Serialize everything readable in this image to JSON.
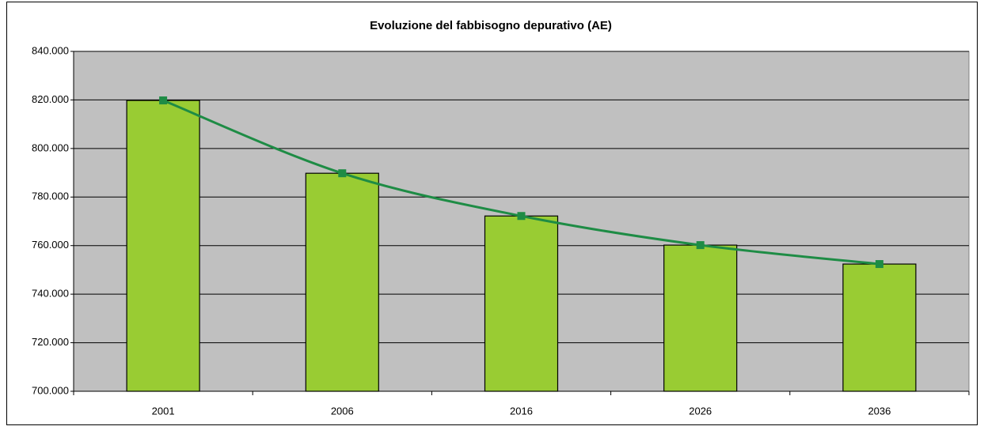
{
  "chart_data": {
    "type": "bar_line",
    "title": "Evoluzione del fabbisogno depurativo (AE)",
    "categories": [
      "2001",
      "2006",
      "2016",
      "2026",
      "2036"
    ],
    "values": [
      819800,
      789800,
      772200,
      760200,
      752400
    ],
    "bar_color": "#99cc33",
    "line_color": "#1e8c45",
    "smooth": true,
    "ylim": [
      700000,
      840000
    ],
    "yticks": [
      {
        "value": 700000,
        "label": "700.000"
      },
      {
        "value": 720000,
        "label": "720.000"
      },
      {
        "value": 740000,
        "label": "740.000"
      },
      {
        "value": 760000,
        "label": "760.000"
      },
      {
        "value": 780000,
        "label": "780.000"
      },
      {
        "value": 800000,
        "label": "800.000"
      },
      {
        "value": 820000,
        "label": "820.000"
      },
      {
        "value": 840000,
        "label": "840.000"
      }
    ],
    "grid": true
  }
}
